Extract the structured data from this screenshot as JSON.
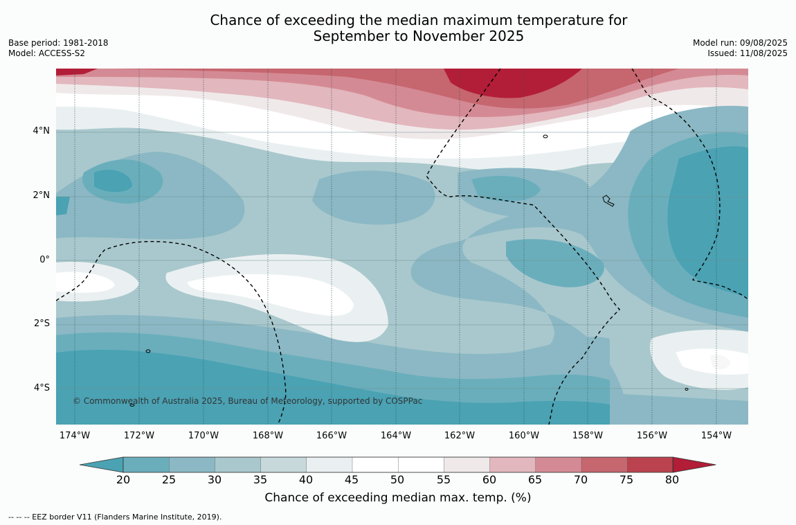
{
  "title": {
    "line1": "Chance of exceeding the median maximum temperature for",
    "line2": "September to November 2025"
  },
  "meta_left": {
    "base_period": "Base period: 1981-2018",
    "model": "Model: ACCESS-S2"
  },
  "meta_right": {
    "model_run": "Model run: 09/08/2025",
    "issued": "Issued: 11/08/2025"
  },
  "credit": "© Commonwealth of Australia 2025, Bureau of Meteorology, supported by COSPPac",
  "map": {
    "lat_labels": [
      "4°N",
      "2°N",
      "0°",
      "2°S",
      "4°S"
    ],
    "lon_labels": [
      "174°W",
      "172°W",
      "170°W",
      "168°W",
      "166°W",
      "164°W",
      "162°W",
      "160°W",
      "158°W",
      "156°W",
      "154°W"
    ]
  },
  "colorbar": {
    "ticks": [
      "20",
      "25",
      "30",
      "35",
      "40",
      "45",
      "50",
      "55",
      "60",
      "65",
      "70",
      "75",
      "80"
    ],
    "label": "Chance of exceeding median max. temp. (%)",
    "colors": [
      "#4aa2b3",
      "#6aaebc",
      "#8bb8c4",
      "#a9c8cd",
      "#c8d9dc",
      "#eaf0f1",
      "#ffffff",
      "#ffffff",
      "#f0e9ea",
      "#e2b7bd",
      "#d48a94",
      "#c6666f",
      "#bb434f",
      "#b21d37"
    ]
  },
  "footer": "--  --  -- EEZ border V11 (Flanders Marine Institute, 2019)."
}
